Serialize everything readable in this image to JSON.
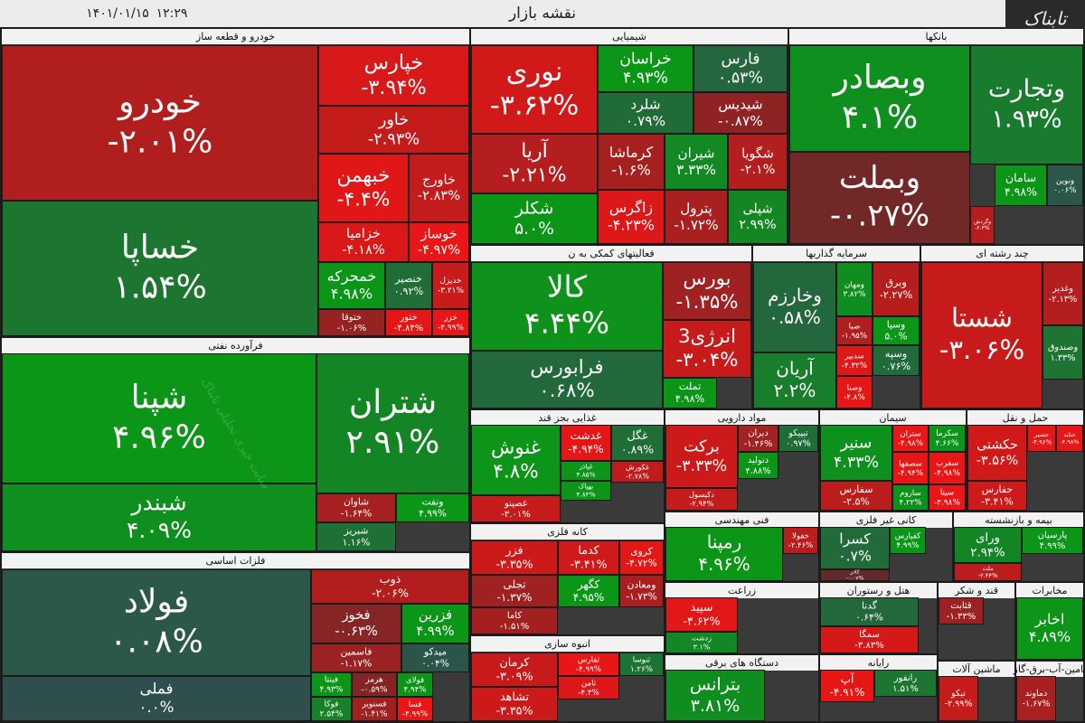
{
  "header": {
    "title": "نقشه بازار",
    "time": "۱۲:۲۹",
    "date": "۱۴۰۱/۰۱/۱۵",
    "logo": "تابناک"
  },
  "watermark": "سایت خبری تحلیلی تابناک",
  "sectors": [
    {
      "name": "خودرو و قطعه ساز",
      "tiles": [
        {
          "name": "خودرو",
          "value": -2.01,
          "value_label": "-۲.۰۱%"
        },
        {
          "name": "خساپا",
          "value": 1.54,
          "value_label": "۱.۵۴%"
        },
        {
          "name": "خپارس",
          "value": -3.94,
          "value_label": "-۳.۹۴%"
        },
        {
          "name": "خاور",
          "value": -2.93,
          "value_label": "-۲.۹۳%"
        },
        {
          "name": "خبهمن",
          "value": -4.4,
          "value_label": "-۴.۴%"
        },
        {
          "name": "خاورج",
          "value": -2.83,
          "value_label": "-۲.۸۳%"
        },
        {
          "name": "خزامیا",
          "value": -4.18,
          "value_label": "-۴.۱۸%"
        },
        {
          "name": "خوساز",
          "value": -4.97,
          "value_label": "-۴.۹۷%"
        },
        {
          "name": "خمحرکه",
          "value": 4.98,
          "value_label": "۴.۹۸%"
        },
        {
          "name": "خنصیر",
          "value": 0.92,
          "value_label": "۰.۹۲%"
        },
        {
          "name": "خدیزل",
          "value": -3.21,
          "value_label": "-۳.۲۱%"
        },
        {
          "name": "ختوقا",
          "value": -1.06,
          "value_label": "-۱.۰۶%"
        },
        {
          "name": "ختور",
          "value": -4.84,
          "value_label": "-۴.۸۴%"
        },
        {
          "name": "خزر",
          "value": -4.99,
          "value_label": "-۴.۹۹%"
        }
      ]
    },
    {
      "name": "فرآورده نفتی",
      "tiles": [
        {
          "name": "شپنا",
          "value": 4.96,
          "value_label": "۴.۹۶%"
        },
        {
          "name": "شبندر",
          "value": 4.09,
          "value_label": "۴.۰۹%"
        },
        {
          "name": "شتران",
          "value": 2.91,
          "value_label": "۲.۹۱%"
        },
        {
          "name": "شاوان",
          "value": -1.64,
          "value_label": "-۱.۶۴%"
        },
        {
          "name": "شبریز",
          "value": 1.16,
          "value_label": "۱.۱۶%"
        },
        {
          "name": "ونفت",
          "value": 4.99,
          "value_label": "۴.۹۹%"
        }
      ]
    },
    {
      "name": "فلزات اساسی",
      "tiles": [
        {
          "name": "فولاد",
          "value": 0.08,
          "value_label": "۰.۰۸%"
        },
        {
          "name": "فملی",
          "value": 0,
          "value_label": "۰.۰%"
        },
        {
          "name": "ذوب",
          "value": -2.06,
          "value_label": "-۲.۰۶%"
        },
        {
          "name": "فخوز",
          "value": -0.63,
          "value_label": "-۰.۶۳%"
        },
        {
          "name": "فزرین",
          "value": 4.99,
          "value_label": "۴.۹۹%"
        },
        {
          "name": "فاسمین",
          "value": -1.17,
          "value_label": "-۱.۱۷%"
        },
        {
          "name": "میدکو",
          "value": 0.04,
          "value_label": "۰.۰۴%"
        },
        {
          "name": "فینتا",
          "value": 4.93,
          "value_label": "۴.۹۳%"
        },
        {
          "name": "فوکا",
          "value": 2.54,
          "value_label": "۲.۵۴%"
        },
        {
          "name": "هرمز",
          "value": -0.59,
          "value_label": "-۰.۵۹%"
        },
        {
          "name": "فسنویر",
          "value": -1.41,
          "value_label": "-۱.۴۱%"
        },
        {
          "name": "فولای",
          "value": 4.94,
          "value_label": "۴.۹۴%"
        },
        {
          "name": "فسا",
          "value": -4.99,
          "value_label": "-۴.۹۹%"
        }
      ]
    },
    {
      "name": "شیمیایی",
      "tiles": [
        {
          "name": "نوری",
          "value": -3.62,
          "value_label": "-۳.۶۲%"
        },
        {
          "name": "آریا",
          "value": -2.21,
          "value_label": "-۲.۲۱%"
        },
        {
          "name": "شکلر",
          "value": 5.0,
          "value_label": "۵.۰%"
        },
        {
          "name": "خراسان",
          "value": 4.93,
          "value_label": "۴.۹۳%"
        },
        {
          "name": "شلرد",
          "value": 0.79,
          "value_label": "۰.۷۹%"
        },
        {
          "name": "فارس",
          "value": 0.53,
          "value_label": "۰.۵۳%"
        },
        {
          "name": "شیدیس",
          "value": -0.87,
          "value_label": "-۰.۸۷%"
        },
        {
          "name": "کرماشا",
          "value": -1.6,
          "value_label": "-۱.۶%"
        },
        {
          "name": "شیران",
          "value": 3.33,
          "value_label": "۳.۳۳%"
        },
        {
          "name": "شگویا",
          "value": -2.1,
          "value_label": "-۲.۱%"
        },
        {
          "name": "زاگرس",
          "value": -4.23,
          "value_label": "-۴.۲۳%"
        },
        {
          "name": "پترول",
          "value": -1.72,
          "value_label": "-۱.۷۲%"
        },
        {
          "name": "شپلی",
          "value": 2.99,
          "value_label": "۲.۹۹%"
        }
      ]
    },
    {
      "name": "بانکها",
      "tiles": [
        {
          "name": "وبصادر",
          "value": 4.1,
          "value_label": "۴.۱%"
        },
        {
          "name": "وبملت",
          "value": -0.27,
          "value_label": "-۰.۲۷%"
        },
        {
          "name": "وتجارت",
          "value": 1.93,
          "value_label": "۱.۹۳%"
        },
        {
          "name": "سامان",
          "value": 4.98,
          "value_label": "۴.۹۸%"
        },
        {
          "name": "ونوین",
          "value": 0.06,
          "value_label": "۰.۰۶%"
        },
        {
          "name": "وگردش",
          "value": -2.3,
          "value_label": "-۲.۳%"
        }
      ]
    },
    {
      "name": "فعالیتهای کمکی به ن",
      "tiles": [
        {
          "name": "کالا",
          "value": 4.44,
          "value_label": "۴.۴۴%"
        },
        {
          "name": "فرابورس",
          "value": 0.68,
          "value_label": "۰.۶۸%"
        },
        {
          "name": "بورس",
          "value": -1.35,
          "value_label": "-۱.۳۵%"
        },
        {
          "name": "انرژی3",
          "value": -3.04,
          "value_label": "-۳.۰۴%"
        },
        {
          "name": "تملت",
          "value": 4.98,
          "value_label": "۴.۹۸%"
        }
      ]
    },
    {
      "name": "سرمایه گذاریها",
      "tiles": [
        {
          "name": "وخارزم",
          "value": 0.58,
          "value_label": "۰.۵۸%"
        },
        {
          "name": "آریان",
          "value": 2.2,
          "value_label": "۲.۲%"
        },
        {
          "name": "ومهان",
          "value": 3.82,
          "value_label": "۳.۸۲%"
        },
        {
          "name": "وبرق",
          "value": -2.27,
          "value_label": "-۲.۲۷%"
        },
        {
          "name": "صبا",
          "value": -1.95,
          "value_label": "-۱.۹۵%"
        },
        {
          "name": "وسپا",
          "value": 5.0,
          "value_label": "۵.۰%"
        },
        {
          "name": "وسپه",
          "value": 0.76,
          "value_label": "۰.۷۶%"
        },
        {
          "name": "سدبیر",
          "value": -4.32,
          "value_label": "-۴.۳۲%"
        },
        {
          "name": "وصنا",
          "value": -4.8,
          "value_label": "-۴.۸%"
        }
      ]
    },
    {
      "name": "چند رشته ای",
      "tiles": [
        {
          "name": "شستا",
          "value": -3.06,
          "value_label": "-۳.۰۶%"
        },
        {
          "name": "وغدیر",
          "value": -2.13,
          "value_label": "-۲.۱۳%"
        },
        {
          "name": "وصندوق",
          "value": 1.33,
          "value_label": "۱.۳۳%"
        }
      ]
    },
    {
      "name": "غذایی بجز قند",
      "tiles": [
        {
          "name": "غنوش",
          "value": 4.8,
          "value_label": "۴.۸%"
        },
        {
          "name": "غصینو",
          "value": -3.01,
          "value_label": "-۳.۰۱%"
        },
        {
          "name": "غدشت",
          "value": -4.94,
          "value_label": "-۴.۹۴%"
        },
        {
          "name": "غگل",
          "value": 0.89,
          "value_label": "۰.۸۹%"
        },
        {
          "name": "غپاذر",
          "value": 4.85,
          "value_label": "۴.۸۵%"
        },
        {
          "name": "غکورش",
          "value": -2.78,
          "value_label": "-۲.۷۸%"
        },
        {
          "name": "بهپاک",
          "value": 4.84,
          "value_label": "۴.۸۴%"
        }
      ]
    },
    {
      "name": "مواد دارویی",
      "tiles": [
        {
          "name": "برکت",
          "value": -3.33,
          "value_label": "-۳.۳۳%"
        },
        {
          "name": "دکیسول",
          "value": -2.94,
          "value_label": "-۲.۹۴%"
        },
        {
          "name": "دیران",
          "value": -1.46,
          "value_label": "-۱.۴۶%"
        },
        {
          "name": "تیپیکو",
          "value": 0.97,
          "value_label": "۰.۹۷%"
        },
        {
          "name": "دتولید",
          "value": 4.88,
          "value_label": "۴.۸۸%"
        }
      ]
    },
    {
      "name": "سیمان",
      "tiles": [
        {
          "name": "سنیر",
          "value": 4.33,
          "value_label": "۴.۳۳%"
        },
        {
          "name": "سفارس",
          "value": -2.5,
          "value_label": "-۲.۵%"
        },
        {
          "name": "ستران",
          "value": -4.98,
          "value_label": "-۴.۹۸%"
        },
        {
          "name": "سکرما",
          "value": 4.66,
          "value_label": "۴.۶۶%"
        },
        {
          "name": "سصفها",
          "value": -4.94,
          "value_label": "-۴.۹۴%"
        },
        {
          "name": "سغرب",
          "value": -4.98,
          "value_label": "-۴.۹۸%"
        },
        {
          "name": "ساروم",
          "value": 4.22,
          "value_label": "۴.۲۲%"
        },
        {
          "name": "سیتا",
          "value": -4.98,
          "value_label": "-۴.۹۸%"
        }
      ]
    },
    {
      "name": "حمل و نقل",
      "tiles": [
        {
          "name": "حکشتی",
          "value": -3.56,
          "value_label": "-۳.۵۶%"
        },
        {
          "name": "حفارس",
          "value": -3.41,
          "value_label": "-۳.۴۱%"
        },
        {
          "name": "حسیر",
          "value": -4.96,
          "value_label": "-۴.۹۶%"
        },
        {
          "name": "حتاید",
          "value": -4.98,
          "value_label": "-۴.۹۸%"
        }
      ]
    },
    {
      "name": "کانه فلزی",
      "tiles": [
        {
          "name": "فزر",
          "value": -3.35,
          "value_label": "-۳.۳۵%"
        },
        {
          "name": "تجلی",
          "value": -1.37,
          "value_label": "-۱.۳۷%"
        },
        {
          "name": "کاما",
          "value": -1.51,
          "value_label": "-۱.۵۱%"
        },
        {
          "name": "کدما",
          "value": -3.41,
          "value_label": "-۳.۴۱%"
        },
        {
          "name": "کروی",
          "value": -4.72,
          "value_label": "-۴.۷۲%"
        },
        {
          "name": "کگهر",
          "value": 4.95,
          "value_label": "۴.۹۵%"
        },
        {
          "name": "ومعادن",
          "value": -1.73,
          "value_label": "-۱.۷۳%"
        }
      ]
    },
    {
      "name": "انبوه سازی",
      "tiles": [
        {
          "name": "کرمان",
          "value": -3.09,
          "value_label": "-۳.۰۹%"
        },
        {
          "name": "تشاهد",
          "value": -3.35,
          "value_label": "-۳.۳۵%"
        },
        {
          "name": "ثفارس",
          "value": -4.99,
          "value_label": "-۴.۹۹%"
        },
        {
          "name": "ثنوسا",
          "value": 1.26,
          "value_label": "۱.۲۶%"
        },
        {
          "name": "ثامن",
          "value": -4.3,
          "value_label": "-۴.۳%"
        }
      ]
    },
    {
      "name": "فنی مهندسی",
      "tiles": [
        {
          "name": "رمپنا",
          "value": 4.96,
          "value_label": "۴.۹۶%"
        },
        {
          "name": "خفولا",
          "value": -2.46,
          "value_label": "-۲.۴۶%"
        }
      ]
    },
    {
      "name": "کانی غیر فلزی",
      "tiles": [
        {
          "name": "کسرا",
          "value": 0.7,
          "value_label": "۰.۷%"
        },
        {
          "name": "کاذر",
          "value": -0.07,
          "value_label": "-۰.۰۷%"
        },
        {
          "name": "کفپارس",
          "value": 4.99,
          "value_label": "۴.۹۹%"
        }
      ]
    },
    {
      "name": "بیمه و بازنشسته",
      "tiles": [
        {
          "name": "ورای",
          "value": 2.94,
          "value_label": "۲.۹۴%"
        },
        {
          "name": "ملت",
          "value": -2.44,
          "value_label": "-۲.۴۴%"
        },
        {
          "name": "پارسیان",
          "value": 4.99,
          "value_label": "۴.۹۹%"
        }
      ]
    },
    {
      "name": "زراعت",
      "tiles": [
        {
          "name": "سپید",
          "value": -4.62,
          "value_label": "-۴.۶۲%"
        },
        {
          "name": "زدشت",
          "value": 3.1,
          "value_label": "۳.۱%"
        }
      ]
    },
    {
      "name": "هتل و رستوران",
      "tiles": [
        {
          "name": "گدنا",
          "value": 0.64,
          "value_label": "۰.۶۴%"
        },
        {
          "name": "سمگا",
          "value": -3.83,
          "value_label": "-۳.۸۳%"
        }
      ]
    },
    {
      "name": "قند و شکر",
      "tiles": [
        {
          "name": "قثابت",
          "value": -1.33,
          "value_label": "-۱.۳۳%"
        }
      ]
    },
    {
      "name": "مخابرات",
      "tiles": [
        {
          "name": "اخابر",
          "value": 4.89,
          "value_label": "۴.۸۹%"
        }
      ]
    },
    {
      "name": "دستگاه های برقی",
      "tiles": [
        {
          "name": "بترانس",
          "value": 3.81,
          "value_label": "۳.۸۱%"
        }
      ]
    },
    {
      "name": "رایانه",
      "tiles": [
        {
          "name": "آپ",
          "value": -4.91,
          "value_label": "-۴.۹۱%"
        },
        {
          "name": "رانفور",
          "value": 1.51,
          "value_label": "۱.۵۱%"
        }
      ]
    },
    {
      "name": "ماشین آلات",
      "tiles": [
        {
          "name": "تیکو",
          "value": -2.99,
          "value_label": "-۲.۹۹%"
        }
      ]
    },
    {
      "name": "تامین-آب-برق-گاز",
      "tiles": [
        {
          "name": "دماوند",
          "value": -1.67,
          "value_label": "-۱.۶۷%"
        }
      ]
    }
  ]
}
